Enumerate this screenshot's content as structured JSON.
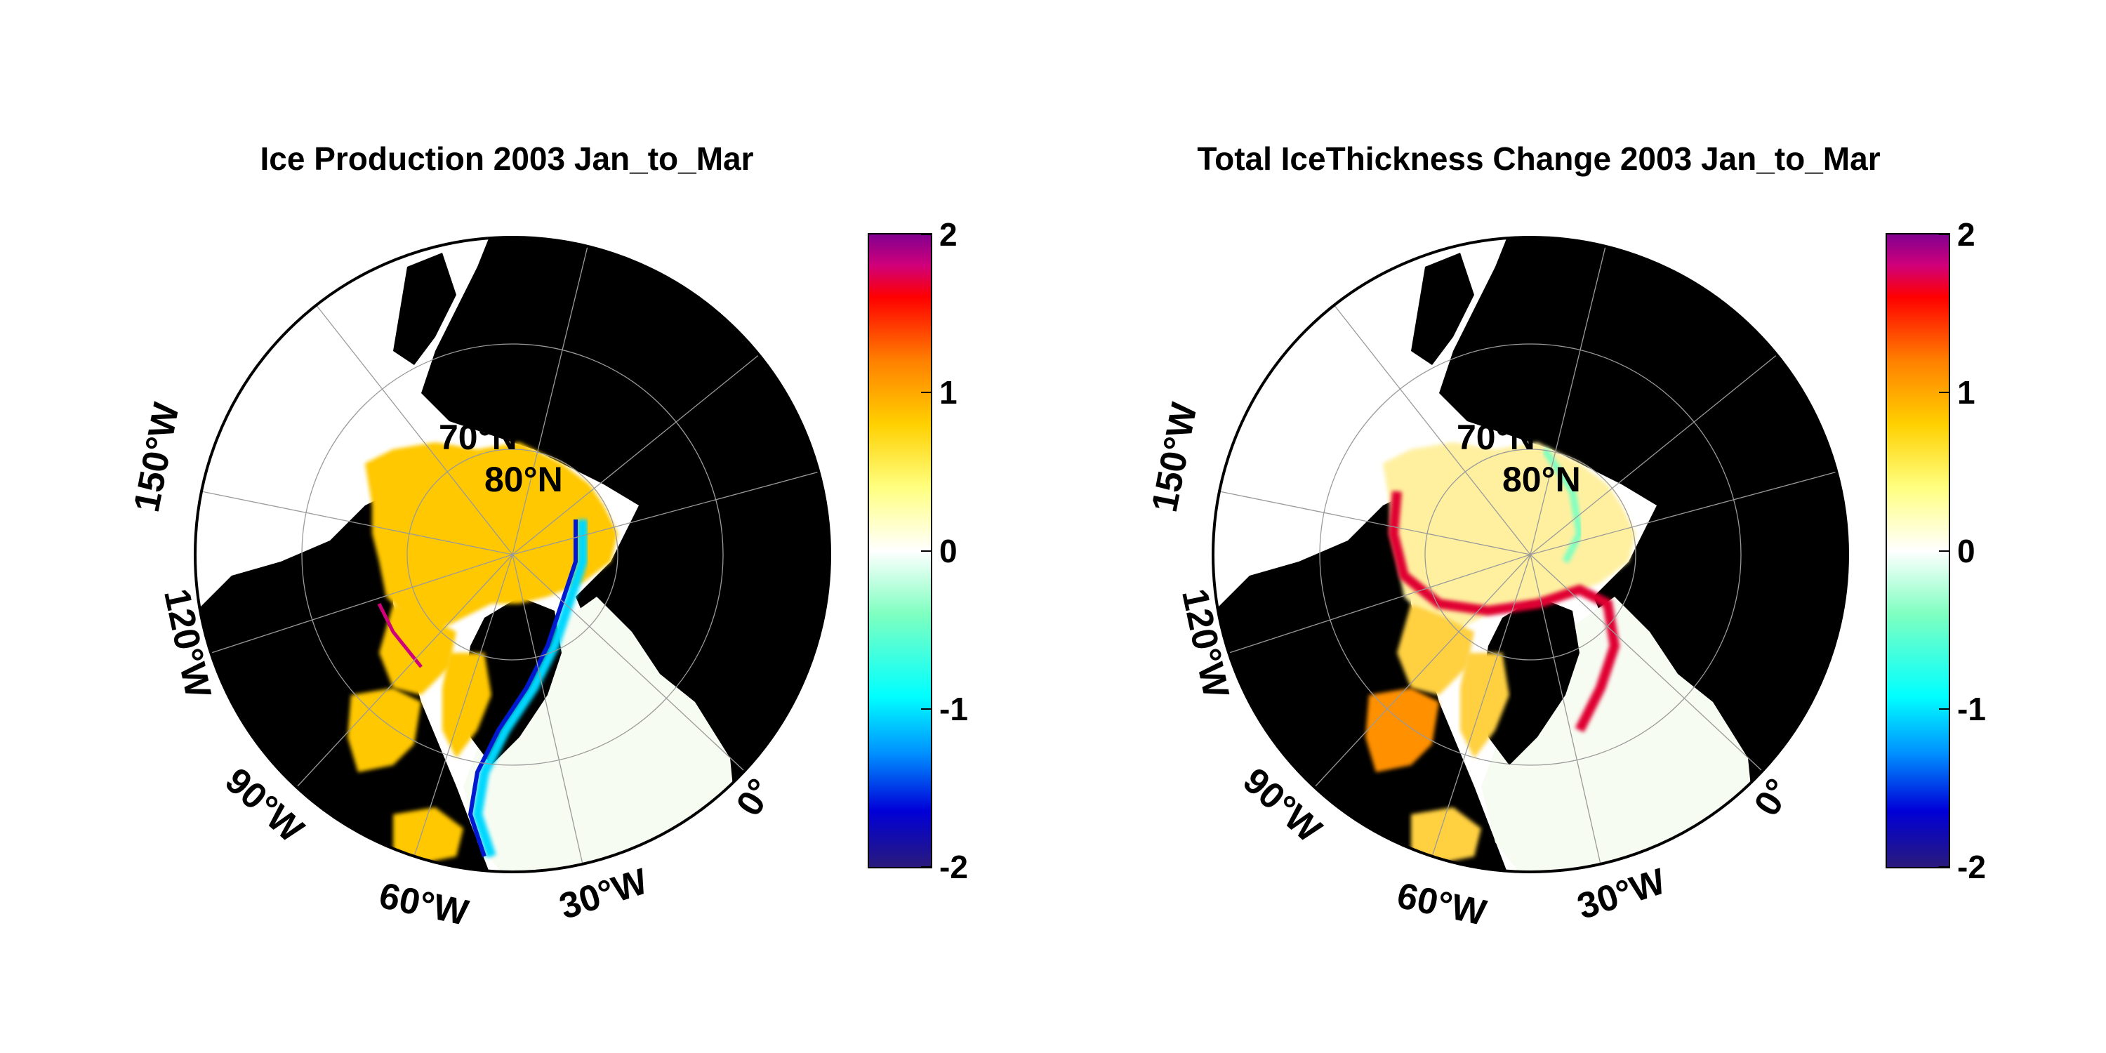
{
  "panels": [
    {
      "title": "Ice Production 2003 Jan_to_Mar",
      "lon_labels": [
        "150°W",
        "120°W",
        "90°W",
        "60°W",
        "30°W",
        "0°"
      ],
      "lat_labels": [
        "70°N",
        "80°N"
      ],
      "colorbar": {
        "min": -2,
        "max": 2,
        "ticks": [
          "2",
          "1",
          "0",
          "-1",
          "-2"
        ],
        "colormap": [
          "#2a1a7a",
          "#0000d8",
          "#0090ff",
          "#00ffff",
          "#7fffc0",
          "#ffffff",
          "#ffff80",
          "#ffd000",
          "#ff8000",
          "#ff0000",
          "#d0007a",
          "#800090"
        ]
      }
    },
    {
      "title": "Total IceThickness Change 2003 Jan_to_Mar",
      "lon_labels": [
        "150°W",
        "120°W",
        "90°W",
        "60°W",
        "30°W",
        "0°"
      ],
      "lat_labels": [
        "70°N",
        "80°N"
      ],
      "colorbar": {
        "min": -2,
        "max": 2,
        "ticks": [
          "2",
          "1",
          "0",
          "-1",
          "-2"
        ],
        "colormap": [
          "#2a1a7a",
          "#0000d8",
          "#0090ff",
          "#00ffff",
          "#7fffc0",
          "#ffffff",
          "#ffff80",
          "#ffd000",
          "#ff8000",
          "#ff0000",
          "#d0007a",
          "#800090"
        ]
      }
    }
  ],
  "colors": {
    "land": "#000000",
    "open_ocean": "#f7fcf2",
    "unmapped": "#ffffff"
  }
}
